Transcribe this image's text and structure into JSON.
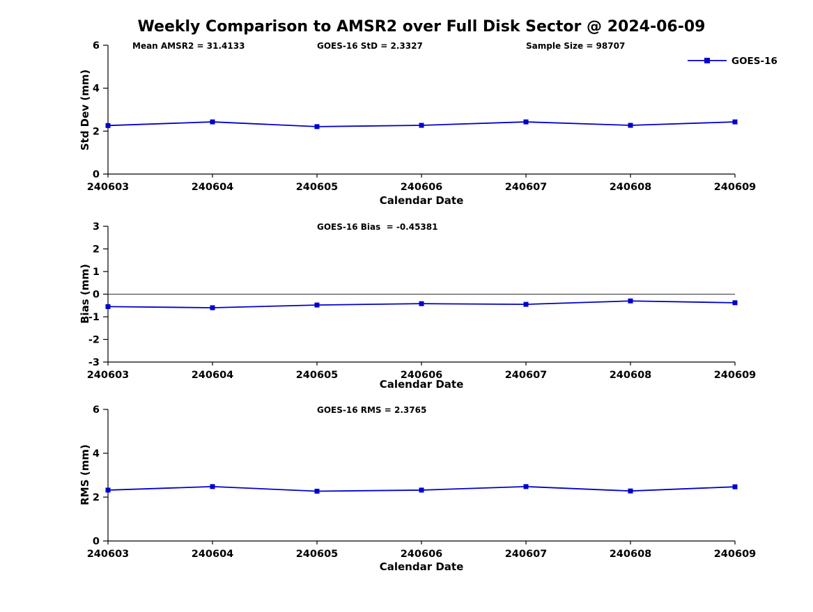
{
  "title": "Weekly Comparison to AMSR2 over Full Disk Sector @ 2024-06-09",
  "colors": {
    "line": "#0000CC",
    "axis": "#000000",
    "zero_line": "#333333",
    "background": "#FFFFFF"
  },
  "legend": {
    "label": "GOES-16"
  },
  "chart_data": [
    {
      "type": "line",
      "panel": "std-dev",
      "annotations": [
        "Mean AMSR2 = 31.4133",
        "GOES-16 StD = 2.3327",
        "Sample Size = 98707"
      ],
      "xlabel": "Calendar Date",
      "ylabel": "Std Dev (mm)",
      "x": [
        "240603",
        "240604",
        "240605",
        "240606",
        "240607",
        "240608",
        "240609"
      ],
      "series": [
        {
          "name": "GOES-16",
          "values": [
            2.26,
            2.43,
            2.21,
            2.27,
            2.43,
            2.27,
            2.43
          ]
        }
      ],
      "ylim": [
        0,
        6
      ],
      "yticks": [
        0,
        2,
        4,
        6
      ],
      "zero_line": false,
      "legend_position": "top-right",
      "grid": false
    },
    {
      "type": "line",
      "panel": "bias",
      "annotations": [
        "GOES-16 Bias  = -0.45381"
      ],
      "xlabel": "Calendar Date",
      "ylabel": "Bias (mm)",
      "x": [
        "240603",
        "240604",
        "240605",
        "240606",
        "240607",
        "240608",
        "240609"
      ],
      "series": [
        {
          "name": "GOES-16",
          "values": [
            -0.55,
            -0.6,
            -0.48,
            -0.42,
            -0.45,
            -0.3,
            -0.38
          ]
        }
      ],
      "ylim": [
        -3,
        3
      ],
      "yticks": [
        -3,
        -2,
        -1,
        0,
        1,
        2,
        3
      ],
      "zero_line": true,
      "legend_position": "none",
      "grid": false
    },
    {
      "type": "line",
      "panel": "rms",
      "annotations": [
        "GOES-16 RMS = 2.3765"
      ],
      "xlabel": "Calendar Date",
      "ylabel": "RMS (mm)",
      "x": [
        "240603",
        "240604",
        "240605",
        "240606",
        "240607",
        "240608",
        "240609"
      ],
      "series": [
        {
          "name": "GOES-16",
          "values": [
            2.32,
            2.48,
            2.27,
            2.32,
            2.48,
            2.28,
            2.47
          ]
        }
      ],
      "ylim": [
        0,
        6
      ],
      "yticks": [
        0,
        2,
        4,
        6
      ],
      "zero_line": false,
      "legend_position": "none",
      "grid": false
    }
  ]
}
